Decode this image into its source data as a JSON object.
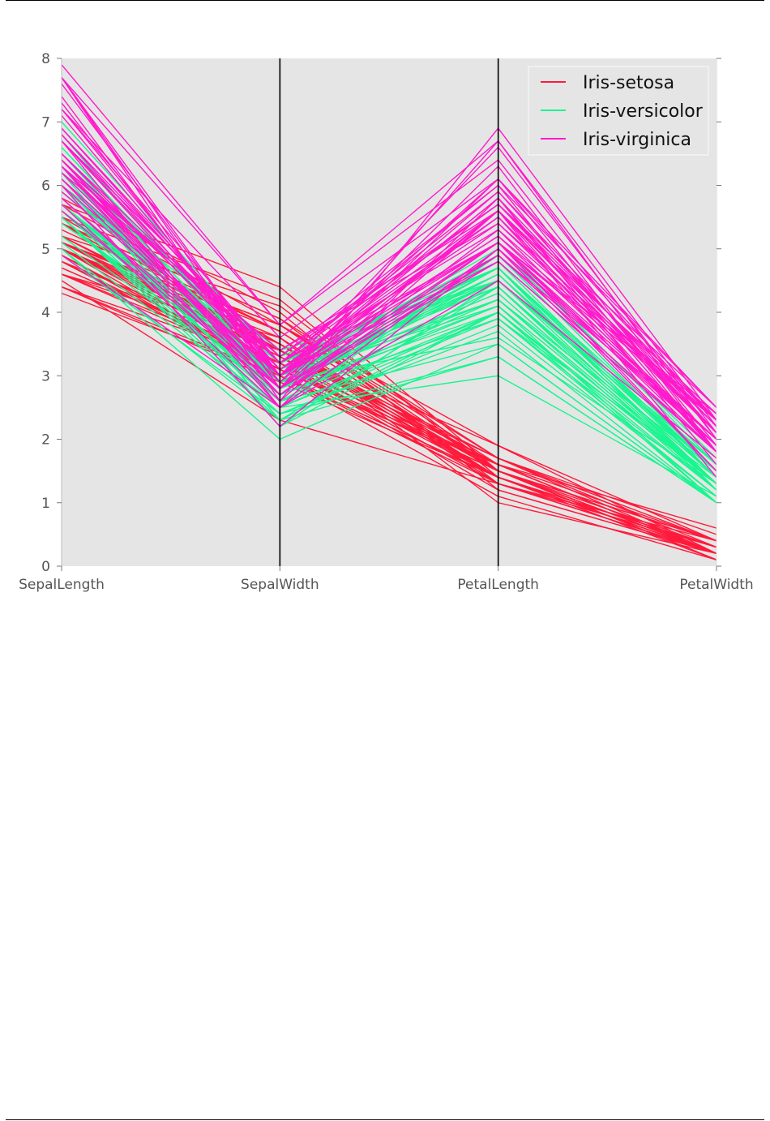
{
  "chart_data": {
    "type": "parallel_coordinates",
    "title": "",
    "axes": [
      "SepalLength",
      "SepalWidth",
      "PetalLength",
      "PetalWidth"
    ],
    "ylim": [
      0,
      8
    ],
    "yticks": [
      "0",
      "1",
      "2",
      "3",
      "4",
      "5",
      "6",
      "7",
      "8"
    ],
    "grid": false,
    "legend_position": "top-right",
    "series": [
      {
        "name": "Iris-setosa",
        "color": "#ff1a3c",
        "rows": [
          [
            5.1,
            3.5,
            1.4,
            0.2
          ],
          [
            4.9,
            3.0,
            1.4,
            0.2
          ],
          [
            4.7,
            3.2,
            1.3,
            0.2
          ],
          [
            4.6,
            3.1,
            1.5,
            0.2
          ],
          [
            5.0,
            3.6,
            1.4,
            0.2
          ],
          [
            5.4,
            3.9,
            1.7,
            0.4
          ],
          [
            4.6,
            3.4,
            1.4,
            0.3
          ],
          [
            5.0,
            3.4,
            1.5,
            0.2
          ],
          [
            4.4,
            2.9,
            1.4,
            0.2
          ],
          [
            4.9,
            3.1,
            1.5,
            0.1
          ],
          [
            5.4,
            3.7,
            1.5,
            0.2
          ],
          [
            4.8,
            3.4,
            1.6,
            0.2
          ],
          [
            4.8,
            3.0,
            1.4,
            0.1
          ],
          [
            4.3,
            3.0,
            1.1,
            0.1
          ],
          [
            5.8,
            4.0,
            1.2,
            0.2
          ],
          [
            5.7,
            4.4,
            1.5,
            0.4
          ],
          [
            5.4,
            3.9,
            1.3,
            0.4
          ],
          [
            5.1,
            3.5,
            1.4,
            0.3
          ],
          [
            5.7,
            3.8,
            1.7,
            0.3
          ],
          [
            5.1,
            3.8,
            1.5,
            0.3
          ],
          [
            5.4,
            3.4,
            1.7,
            0.2
          ],
          [
            5.1,
            3.7,
            1.5,
            0.4
          ],
          [
            4.6,
            3.6,
            1.0,
            0.2
          ],
          [
            5.1,
            3.3,
            1.7,
            0.5
          ],
          [
            4.8,
            3.4,
            1.9,
            0.2
          ],
          [
            5.0,
            3.0,
            1.6,
            0.2
          ],
          [
            5.0,
            3.4,
            1.6,
            0.4
          ],
          [
            5.2,
            3.5,
            1.5,
            0.2
          ],
          [
            5.2,
            3.4,
            1.4,
            0.2
          ],
          [
            4.7,
            3.2,
            1.6,
            0.2
          ],
          [
            4.8,
            3.1,
            1.6,
            0.2
          ],
          [
            5.4,
            3.4,
            1.5,
            0.4
          ],
          [
            5.2,
            4.1,
            1.5,
            0.1
          ],
          [
            5.5,
            4.2,
            1.4,
            0.2
          ],
          [
            4.9,
            3.1,
            1.5,
            0.1
          ],
          [
            5.0,
            3.2,
            1.2,
            0.2
          ],
          [
            5.5,
            3.5,
            1.3,
            0.2
          ],
          [
            4.9,
            3.1,
            1.5,
            0.1
          ],
          [
            4.4,
            3.0,
            1.3,
            0.2
          ],
          [
            5.1,
            3.4,
            1.5,
            0.2
          ],
          [
            5.0,
            3.5,
            1.3,
            0.3
          ],
          [
            4.5,
            2.3,
            1.3,
            0.3
          ],
          [
            4.4,
            3.2,
            1.3,
            0.2
          ],
          [
            5.0,
            3.5,
            1.6,
            0.6
          ],
          [
            5.1,
            3.8,
            1.9,
            0.4
          ],
          [
            4.8,
            3.0,
            1.4,
            0.3
          ],
          [
            5.1,
            3.8,
            1.6,
            0.2
          ],
          [
            4.6,
            3.2,
            1.4,
            0.2
          ],
          [
            5.3,
            3.7,
            1.5,
            0.2
          ],
          [
            5.0,
            3.3,
            1.4,
            0.2
          ]
        ]
      },
      {
        "name": "Iris-versicolor",
        "color": "#1af58f",
        "rows": [
          [
            7.0,
            3.2,
            4.7,
            1.4
          ],
          [
            6.4,
            3.2,
            4.5,
            1.5
          ],
          [
            6.9,
            3.1,
            4.9,
            1.5
          ],
          [
            5.5,
            2.3,
            4.0,
            1.3
          ],
          [
            6.5,
            2.8,
            4.6,
            1.5
          ],
          [
            5.7,
            2.8,
            4.5,
            1.3
          ],
          [
            6.3,
            3.3,
            4.7,
            1.6
          ],
          [
            4.9,
            2.4,
            3.3,
            1.0
          ],
          [
            6.6,
            2.9,
            4.6,
            1.3
          ],
          [
            5.2,
            2.7,
            3.9,
            1.4
          ],
          [
            5.0,
            2.0,
            3.5,
            1.0
          ],
          [
            5.9,
            3.0,
            4.2,
            1.5
          ],
          [
            6.0,
            2.2,
            4.0,
            1.0
          ],
          [
            6.1,
            2.9,
            4.7,
            1.4
          ],
          [
            5.6,
            2.9,
            3.6,
            1.3
          ],
          [
            6.7,
            3.1,
            4.4,
            1.4
          ],
          [
            5.6,
            3.0,
            4.5,
            1.5
          ],
          [
            5.8,
            2.7,
            4.1,
            1.0
          ],
          [
            6.2,
            2.2,
            4.5,
            1.5
          ],
          [
            5.6,
            2.5,
            3.9,
            1.1
          ],
          [
            5.9,
            3.2,
            4.8,
            1.8
          ],
          [
            6.1,
            2.8,
            4.0,
            1.3
          ],
          [
            6.3,
            2.5,
            4.9,
            1.5
          ],
          [
            6.1,
            2.8,
            4.7,
            1.2
          ],
          [
            6.4,
            2.9,
            4.3,
            1.3
          ],
          [
            6.6,
            3.0,
            4.4,
            1.4
          ],
          [
            6.8,
            2.8,
            4.8,
            1.4
          ],
          [
            6.7,
            3.0,
            5.0,
            1.7
          ],
          [
            6.0,
            2.9,
            4.5,
            1.5
          ],
          [
            5.7,
            2.6,
            3.5,
            1.0
          ],
          [
            5.5,
            2.4,
            3.8,
            1.1
          ],
          [
            5.5,
            2.4,
            3.7,
            1.0
          ],
          [
            5.8,
            2.7,
            3.9,
            1.2
          ],
          [
            6.0,
            2.7,
            5.1,
            1.6
          ],
          [
            5.4,
            3.0,
            4.5,
            1.5
          ],
          [
            6.0,
            3.4,
            4.5,
            1.6
          ],
          [
            6.7,
            3.1,
            4.7,
            1.5
          ],
          [
            6.3,
            2.3,
            4.4,
            1.3
          ],
          [
            5.6,
            3.0,
            4.1,
            1.3
          ],
          [
            5.5,
            2.5,
            4.0,
            1.3
          ],
          [
            5.5,
            2.6,
            4.4,
            1.2
          ],
          [
            6.1,
            3.0,
            4.6,
            1.4
          ],
          [
            5.8,
            2.6,
            4.0,
            1.2
          ],
          [
            5.0,
            2.3,
            3.3,
            1.0
          ],
          [
            5.6,
            2.7,
            4.2,
            1.3
          ],
          [
            5.7,
            3.0,
            4.2,
            1.2
          ],
          [
            5.7,
            2.9,
            4.2,
            1.3
          ],
          [
            6.2,
            2.9,
            4.3,
            1.3
          ],
          [
            5.1,
            2.5,
            3.0,
            1.1
          ],
          [
            5.7,
            2.8,
            4.1,
            1.3
          ]
        ]
      },
      {
        "name": "Iris-virginica",
        "color": "#ff1acc",
        "rows": [
          [
            6.3,
            3.3,
            6.0,
            2.5
          ],
          [
            5.8,
            2.7,
            5.1,
            1.9
          ],
          [
            7.1,
            3.0,
            5.9,
            2.1
          ],
          [
            6.3,
            2.9,
            5.6,
            1.8
          ],
          [
            6.5,
            3.0,
            5.8,
            2.2
          ],
          [
            7.6,
            3.0,
            6.6,
            2.1
          ],
          [
            4.9,
            2.5,
            4.5,
            1.7
          ],
          [
            7.3,
            2.9,
            6.3,
            1.8
          ],
          [
            6.7,
            2.5,
            5.8,
            1.8
          ],
          [
            7.2,
            3.6,
            6.1,
            2.5
          ],
          [
            6.5,
            3.2,
            5.1,
            2.0
          ],
          [
            6.4,
            2.7,
            5.3,
            1.9
          ],
          [
            6.8,
            3.0,
            5.5,
            2.1
          ],
          [
            5.7,
            2.5,
            5.0,
            2.0
          ],
          [
            5.8,
            2.8,
            5.1,
            2.4
          ],
          [
            6.4,
            3.2,
            5.3,
            2.3
          ],
          [
            6.5,
            3.0,
            5.5,
            1.8
          ],
          [
            7.7,
            3.8,
            6.7,
            2.2
          ],
          [
            7.7,
            2.6,
            6.9,
            2.3
          ],
          [
            6.0,
            2.2,
            5.0,
            1.5
          ],
          [
            6.9,
            3.2,
            5.7,
            2.3
          ],
          [
            5.6,
            2.8,
            4.9,
            2.0
          ],
          [
            7.7,
            2.8,
            6.7,
            2.0
          ],
          [
            6.3,
            2.7,
            4.9,
            1.8
          ],
          [
            6.7,
            3.3,
            5.7,
            2.1
          ],
          [
            7.2,
            3.2,
            6.0,
            1.8
          ],
          [
            6.2,
            2.8,
            4.8,
            1.8
          ],
          [
            6.1,
            3.0,
            4.9,
            1.8
          ],
          [
            6.4,
            2.8,
            5.6,
            2.1
          ],
          [
            7.2,
            3.0,
            5.8,
            1.6
          ],
          [
            7.4,
            2.8,
            6.1,
            1.9
          ],
          [
            7.9,
            3.8,
            6.4,
            2.0
          ],
          [
            6.4,
            2.8,
            5.6,
            2.2
          ],
          [
            6.3,
            2.8,
            5.1,
            1.5
          ],
          [
            6.1,
            2.6,
            5.6,
            1.4
          ],
          [
            7.7,
            3.0,
            6.1,
            2.3
          ],
          [
            6.3,
            3.4,
            5.6,
            2.4
          ],
          [
            6.4,
            3.1,
            5.5,
            1.8
          ],
          [
            6.0,
            3.0,
            4.8,
            1.8
          ],
          [
            6.9,
            3.1,
            5.4,
            2.1
          ],
          [
            6.7,
            3.1,
            5.6,
            2.4
          ],
          [
            6.9,
            3.1,
            5.1,
            2.3
          ],
          [
            5.8,
            2.7,
            5.1,
            1.9
          ],
          [
            6.8,
            3.2,
            5.9,
            2.3
          ],
          [
            6.7,
            3.3,
            5.7,
            2.5
          ],
          [
            6.7,
            3.0,
            5.2,
            2.3
          ],
          [
            6.3,
            2.5,
            5.0,
            1.9
          ],
          [
            6.5,
            3.0,
            5.2,
            2.0
          ],
          [
            6.2,
            3.4,
            5.4,
            2.3
          ],
          [
            5.9,
            3.0,
            5.1,
            1.8
          ]
        ]
      }
    ]
  }
}
